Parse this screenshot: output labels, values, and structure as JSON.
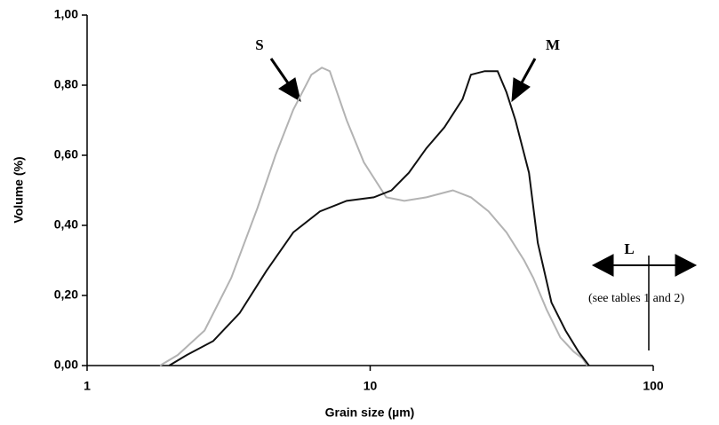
{
  "chart_data": {
    "type": "line",
    "x_label": "Grain size (µm)",
    "y_label": "Volume (%)",
    "xscale": "log",
    "xlim": [
      1,
      100
    ],
    "xticks": [
      1,
      10,
      100
    ],
    "ylim": [
      0,
      1
    ],
    "yticks": [
      {
        "value": 0,
        "label": "0,00"
      },
      {
        "value": 0.2,
        "label": "0,20"
      },
      {
        "value": 0.4,
        "label": "0,40"
      },
      {
        "value": 0.6,
        "label": "0,60"
      },
      {
        "value": 0.8,
        "label": "0,80"
      },
      {
        "value": 1,
        "label": "1,00"
      }
    ],
    "grid": false,
    "series": [
      {
        "name": "S",
        "color": "#b3b3b3",
        "x": [
          1.81,
          2.09,
          2.6,
          3.23,
          4.0,
          4.63,
          5.35,
          6.2,
          6.75,
          7.2,
          8.26,
          9.5,
          11.4,
          13.2,
          15.8,
          19.6,
          22.7,
          26.2,
          30.3,
          35,
          37.7,
          42,
          47,
          52.3,
          56.3,
          58.4
        ],
        "values": [
          0,
          0.03,
          0.1,
          0.25,
          0.45,
          0.6,
          0.73,
          0.83,
          0.85,
          0.84,
          0.7,
          0.58,
          0.48,
          0.47,
          0.48,
          0.5,
          0.48,
          0.44,
          0.38,
          0.3,
          0.25,
          0.16,
          0.08,
          0.04,
          0.02,
          0
        ]
      },
      {
        "name": "M",
        "color": "#111111",
        "x": [
          1.95,
          2.25,
          2.79,
          3.46,
          4.3,
          5.35,
          6.65,
          8.26,
          10.3,
          11.9,
          13.7,
          15.8,
          18.3,
          21.2,
          22.7,
          25.4,
          28.2,
          30.3,
          32.6,
          36.4,
          39.1,
          43.7,
          49,
          54.4,
          59.3
        ],
        "values": [
          0,
          0.03,
          0.07,
          0.15,
          0.27,
          0.38,
          0.44,
          0.47,
          0.48,
          0.5,
          0.55,
          0.62,
          0.68,
          0.76,
          0.83,
          0.84,
          0.84,
          0.78,
          0.7,
          0.55,
          0.35,
          0.18,
          0.1,
          0.04,
          0
        ]
      }
    ],
    "annotations": [
      "L",
      "(see tables 1 and 2)"
    ]
  }
}
